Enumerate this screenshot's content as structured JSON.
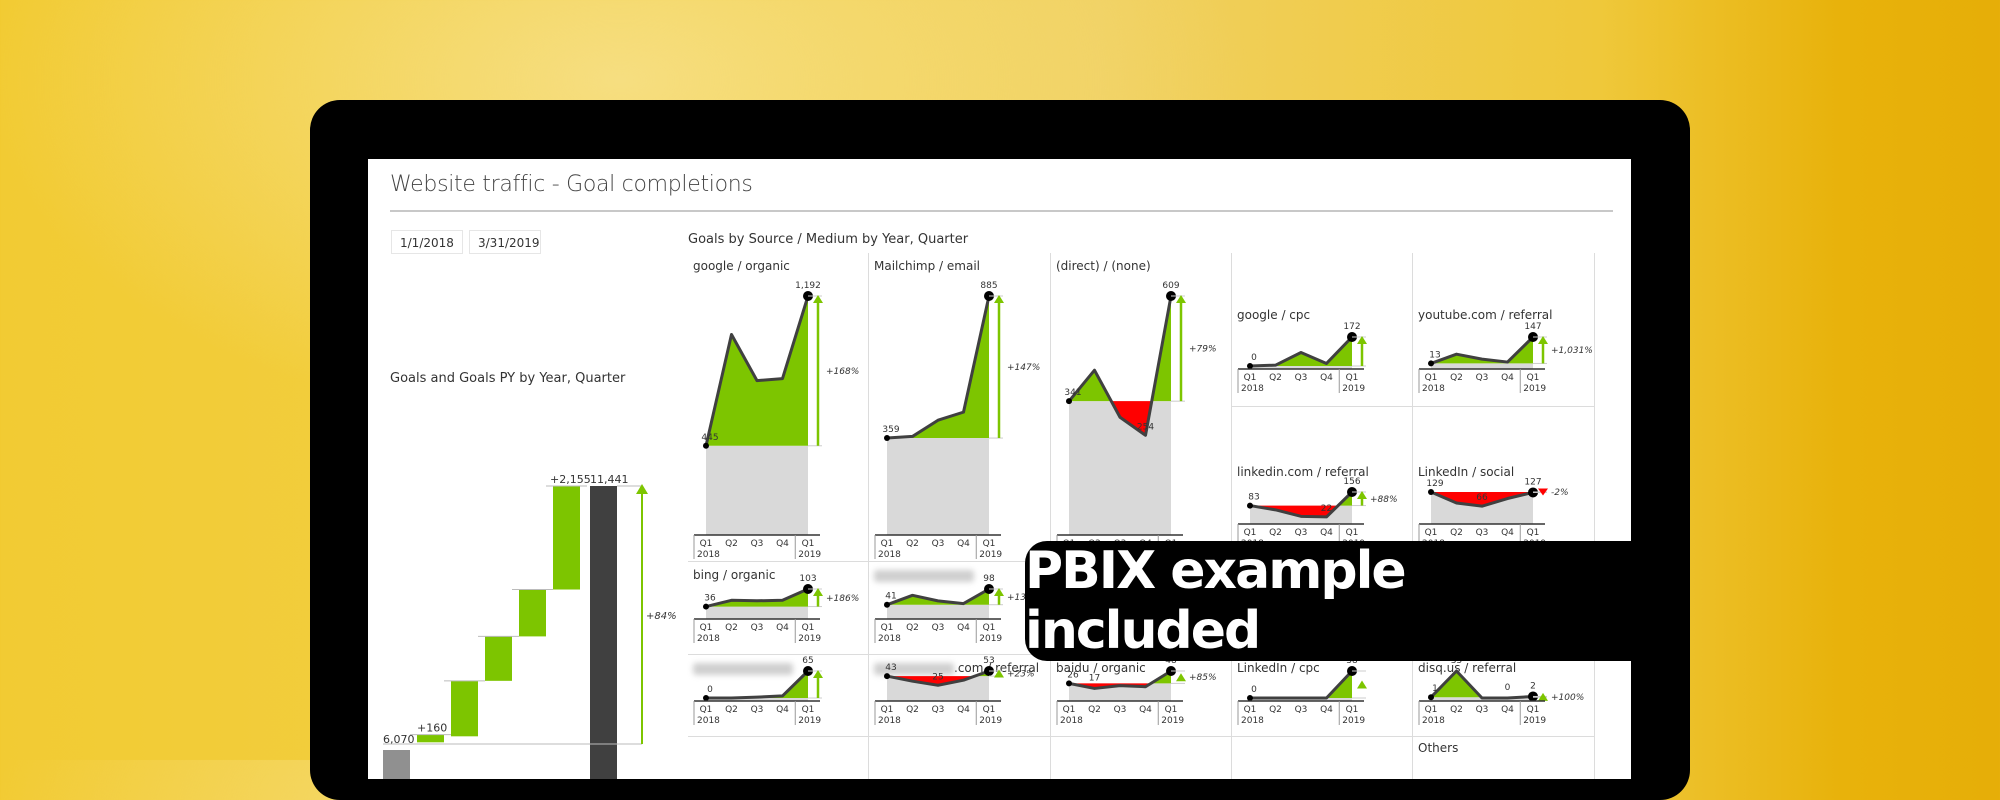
{
  "background": {
    "gradient_from": "#f2cb33",
    "gradient_to": "#e6ae08"
  },
  "banner": {
    "text": "PBIX example included"
  },
  "report": {
    "title": "Website traffic - Goal completions",
    "date_range": {
      "start": "1/1/2018",
      "end": "3/31/2019"
    },
    "colors": {
      "positive": "#7dc500",
      "negative": "#ff0000",
      "baseline": "#d9d9d9",
      "line": "#404040",
      "total_bar": "#404040",
      "start_bar": "#909090"
    }
  },
  "waterfall": {
    "title": "Goals and Goals PY by Year, Quarter",
    "start_label": "6,070",
    "start_value": 6070,
    "steps": [
      {
        "label": "+160",
        "delta": 160
      },
      {
        "label": "",
        "delta": 1155
      },
      {
        "label": "",
        "delta": 925
      },
      {
        "label": "",
        "delta": 976
      },
      {
        "label": "+2,155",
        "delta": 2155
      }
    ],
    "total_label": "11,441",
    "total_value": 11441,
    "change_label": "+84%"
  },
  "grid": {
    "title": "Goals by Source / Medium by Year, Quarter",
    "axis": {
      "quarters": [
        "Q1",
        "Q2",
        "Q3",
        "Q4",
        "Q1"
      ],
      "years": [
        "2018",
        "2019"
      ]
    },
    "panels": [
      {
        "name": "google / organic",
        "values": [
          445,
          1000,
          770,
          780,
          1192
        ],
        "first_label": "445",
        "last_label": "1,192",
        "change": "+168%",
        "dir": "up",
        "size": "large"
      },
      {
        "name": "Mailchimp / email",
        "values": [
          359,
          365,
          425,
          455,
          885
        ],
        "first_label": "359",
        "last_label": "885",
        "change": "+147%",
        "dir": "up",
        "size": "large"
      },
      {
        "name": "(direct) / (none)",
        "values": [
          341,
          420,
          300,
          254,
          609
        ],
        "first_label": "341",
        "last_label": "609",
        "mid_label": "254",
        "change": "+79%",
        "dir": "up",
        "size": "large"
      },
      {
        "name": "google / cpc",
        "values": [
          0,
          5,
          80,
          15,
          172
        ],
        "first_label": "0",
        "last_label": "172",
        "change": "",
        "dir": "up",
        "size": "small"
      },
      {
        "name": "youtube.com / referral",
        "values": [
          13,
          60,
          35,
          20,
          147
        ],
        "first_label": "13",
        "last_label": "147",
        "change": "+1,031%",
        "dir": "up",
        "size": "small"
      },
      {
        "name": "linkedin.com / referral",
        "values": [
          83,
          60,
          25,
          22,
          156
        ],
        "first_label": "83",
        "last_label": "156",
        "mid_label": "22",
        "change": "+88%",
        "dir": "up",
        "size": "small"
      },
      {
        "name": "LinkedIn / social",
        "values": [
          129,
          80,
          66,
          100,
          127
        ],
        "first_label": "129",
        "last_label": "127",
        "mid_label": "66",
        "change": "-2%",
        "dir": "down",
        "size": "small"
      },
      {
        "name": "bing / organic",
        "values": [
          36,
          60,
          58,
          60,
          103
        ],
        "first_label": "36",
        "last_label": "103",
        "change": "+186%",
        "dir": "up",
        "size": "small"
      },
      {
        "name": "",
        "blurred": true,
        "values": [
          41,
          75,
          55,
          45,
          98
        ],
        "first_label": "41",
        "last_label": "98",
        "change": "+13",
        "dir": "up",
        "size": "small"
      },
      {
        "name": "",
        "blurred": true,
        "values": [
          0,
          0,
          2,
          5,
          65
        ],
        "first_label": "0",
        "last_label": "65",
        "change": "",
        "dir": "up",
        "size": "small"
      },
      {
        "name": ".com / referral",
        "blurred_prefix": true,
        "values": [
          43,
          33,
          25,
          35,
          53
        ],
        "first_label": "43",
        "last_label": "53",
        "mid_label": "25",
        "change": "+23%",
        "dir": "up-tri",
        "size": "small"
      },
      {
        "name": "baidu / organic",
        "values": [
          26,
          17,
          22,
          20,
          48
        ],
        "first_label": "26",
        "last_label": "48",
        "second_label": "17",
        "change": "+85%",
        "dir": "up-tri",
        "size": "small"
      },
      {
        "name": "LinkedIn / cpc",
        "values": [
          0,
          0,
          0,
          0,
          38
        ],
        "first_label": "0",
        "last_label": "38",
        "change": "",
        "dir": "up-tri",
        "size": "small"
      },
      {
        "name": "disq.us / referral",
        "values": [
          1,
          35,
          0,
          0,
          2
        ],
        "first_label": "1",
        "last_label": "2",
        "second_label": "35",
        "fourth_label": "0",
        "change": "+100%",
        "dir": "up-tri",
        "size": "small"
      },
      {
        "name": "Others",
        "values": [],
        "size": "empty"
      }
    ]
  }
}
